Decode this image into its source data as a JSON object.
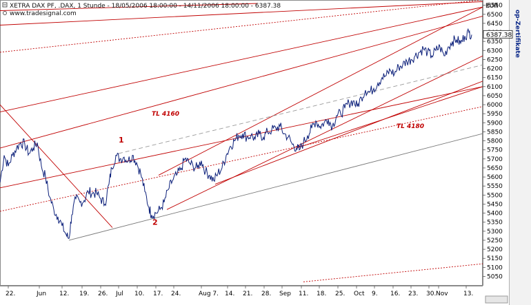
{
  "header": {
    "title": "XETRA DAX PF, .DAX, 1 Stunde - 18/05/2006 18:00:00 - 14/11/2006 18:00:00 - 6387.38",
    "source": "www.tradesignal.com",
    "currency": "EUR",
    "side_label": "op-Zertifikate"
  },
  "chart_data": {
    "type": "line",
    "title": "XETRA DAX PF, .DAX, 1 Stunde - 18/05/2006 18:00:00 - 14/11/2006 18:00:00 - 6387.38",
    "ylabel": "EUR",
    "ylim": [
      5010,
      6560
    ],
    "xlim": [
      0,
      700
    ],
    "y_ticks": [
      5050,
      5100,
      5150,
      5200,
      5250,
      5300,
      5350,
      5400,
      5450,
      5500,
      5550,
      5600,
      5650,
      5700,
      5750,
      5800,
      5850,
      5900,
      5950,
      6000,
      6050,
      6100,
      6150,
      6200,
      6250,
      6300,
      6350,
      6400,
      6450,
      6500,
      6550
    ],
    "x_ticks": [
      {
        "label": "22.",
        "x": 12
      },
      {
        "label": "Jun",
        "x": 57
      },
      {
        "label": "12.",
        "x": 90
      },
      {
        "label": "19.",
        "x": 119
      },
      {
        "label": "26.",
        "x": 146
      },
      {
        "label": "Jul",
        "x": 172
      },
      {
        "label": "10.",
        "x": 199
      },
      {
        "label": "17.",
        "x": 226
      },
      {
        "label": "24.",
        "x": 252
      },
      {
        "label": "Aug 7.",
        "x": 292
      },
      {
        "label": "14.",
        "x": 330
      },
      {
        "label": "21.",
        "x": 356
      },
      {
        "label": "28.",
        "x": 383
      },
      {
        "label": "Sep",
        "x": 409
      },
      {
        "label": "11.",
        "x": 437
      },
      {
        "label": "18.",
        "x": 463
      },
      {
        "label": "25.",
        "x": 490
      },
      {
        "label": "Oct",
        "x": 517
      },
      {
        "label": "9.",
        "x": 543
      },
      {
        "label": "16.",
        "x": 570
      },
      {
        "label": "23.",
        "x": 596
      },
      {
        "label": "30.",
        "x": 622
      },
      {
        "label": "Nov",
        "x": 636
      },
      {
        "label": "13.",
        "x": 676
      }
    ],
    "last_value": "6387.38",
    "grid": false,
    "series": [
      {
        "values": [
          [
            0,
            5570
          ],
          [
            6,
            5720
          ],
          [
            12,
            5660
          ],
          [
            18,
            5720
          ],
          [
            24,
            5760
          ],
          [
            30,
            5790
          ],
          [
            36,
            5780
          ],
          [
            42,
            5730
          ],
          [
            48,
            5760
          ],
          [
            54,
            5790
          ],
          [
            60,
            5660
          ],
          [
            66,
            5600
          ],
          [
            72,
            5490
          ],
          [
            78,
            5420
          ],
          [
            84,
            5380
          ],
          [
            90,
            5330
          ],
          [
            96,
            5280
          ],
          [
            100,
            5260
          ],
          [
            104,
            5390
          ],
          [
            110,
            5480
          ],
          [
            116,
            5460
          ],
          [
            122,
            5470
          ],
          [
            128,
            5520
          ],
          [
            134,
            5510
          ],
          [
            140,
            5510
          ],
          [
            146,
            5480
          ],
          [
            152,
            5450
          ],
          [
            158,
            5560
          ],
          [
            162,
            5650
          ],
          [
            168,
            5720
          ],
          [
            174,
            5700
          ],
          [
            180,
            5710
          ],
          [
            186,
            5690
          ],
          [
            192,
            5720
          ],
          [
            198,
            5680
          ],
          [
            204,
            5620
          ],
          [
            210,
            5520
          ],
          [
            216,
            5430
          ],
          [
            220,
            5390
          ],
          [
            226,
            5400
          ],
          [
            232,
            5420
          ],
          [
            238,
            5460
          ],
          [
            244,
            5530
          ],
          [
            250,
            5580
          ],
          [
            256,
            5610
          ],
          [
            262,
            5640
          ],
          [
            268,
            5700
          ],
          [
            274,
            5680
          ],
          [
            280,
            5660
          ],
          [
            286,
            5650
          ],
          [
            292,
            5690
          ],
          [
            298,
            5630
          ],
          [
            304,
            5610
          ],
          [
            310,
            5580
          ],
          [
            316,
            5620
          ],
          [
            322,
            5650
          ],
          [
            328,
            5720
          ],
          [
            334,
            5770
          ],
          [
            340,
            5800
          ],
          [
            346,
            5830
          ],
          [
            352,
            5840
          ],
          [
            358,
            5820
          ],
          [
            364,
            5830
          ],
          [
            370,
            5810
          ],
          [
            376,
            5840
          ],
          [
            382,
            5820
          ],
          [
            388,
            5850
          ],
          [
            394,
            5860
          ],
          [
            400,
            5870
          ],
          [
            406,
            5880
          ],
          [
            412,
            5840
          ],
          [
            418,
            5820
          ],
          [
            424,
            5780
          ],
          [
            430,
            5760
          ],
          [
            434,
            5750
          ],
          [
            440,
            5790
          ],
          [
            446,
            5830
          ],
          [
            452,
            5870
          ],
          [
            458,
            5910
          ],
          [
            464,
            5880
          ],
          [
            470,
            5900
          ],
          [
            476,
            5920
          ],
          [
            482,
            5880
          ],
          [
            488,
            5940
          ],
          [
            494,
            5950
          ],
          [
            500,
            5980
          ],
          [
            506,
            6010
          ],
          [
            512,
            6020
          ],
          [
            518,
            5990
          ],
          [
            524,
            6040
          ],
          [
            530,
            6080
          ],
          [
            536,
            6070
          ],
          [
            542,
            6090
          ],
          [
            548,
            6120
          ],
          [
            554,
            6150
          ],
          [
            560,
            6160
          ],
          [
            566,
            6190
          ],
          [
            572,
            6170
          ],
          [
            578,
            6210
          ],
          [
            584,
            6220
          ],
          [
            590,
            6240
          ],
          [
            596,
            6250
          ],
          [
            602,
            6270
          ],
          [
            608,
            6290
          ],
          [
            614,
            6310
          ],
          [
            620,
            6290
          ],
          [
            626,
            6270
          ],
          [
            632,
            6300
          ],
          [
            638,
            6320
          ],
          [
            644,
            6270
          ],
          [
            650,
            6320
          ],
          [
            656,
            6350
          ],
          [
            662,
            6360
          ],
          [
            668,
            6340
          ],
          [
            674,
            6380
          ],
          [
            680,
            6400
          ],
          [
            684,
            6387
          ]
        ]
      }
    ],
    "annotations": [
      {
        "text": "TL 4160",
        "x": 220,
        "y": 5940
      },
      {
        "text": "TL 4180",
        "x": 575,
        "y": 5870
      },
      {
        "text": "1",
        "x": 172,
        "y": 5790
      },
      {
        "text": "2",
        "x": 221,
        "y": 5335
      }
    ],
    "trendlines": [
      {
        "style": "solid-red",
        "p1": [
          0,
          6520
        ],
        "p2": [
          374,
          6560
        ]
      },
      {
        "style": "dotted-red",
        "p1": [
          0,
          6290
        ],
        "p2": [
          700,
          6580
        ]
      },
      {
        "style": "solid-red",
        "p1": [
          0,
          6440
        ],
        "p2": [
          700,
          6570
        ]
      },
      {
        "style": "solid-red",
        "p1": [
          0,
          5960
        ],
        "p2": [
          700,
          6540
        ]
      },
      {
        "style": "solid-red",
        "p1": [
          0,
          5760
        ],
        "p2": [
          700,
          6490
        ]
      },
      {
        "style": "solid-red",
        "p1": [
          0,
          5540
        ],
        "p2": [
          700,
          6100
        ]
      },
      {
        "style": "dotted-red",
        "p1": [
          0,
          5410
        ],
        "p2": [
          700,
          5990
        ]
      },
      {
        "style": "solid-red",
        "p1": [
          0,
          6000
        ],
        "p2": [
          163,
          5320
        ]
      },
      {
        "style": "solid-red",
        "p1": [
          230,
          5610
        ],
        "p2": [
          700,
          6540
        ]
      },
      {
        "style": "solid-red",
        "p1": [
          242,
          5420
        ],
        "p2": [
          700,
          6270
        ]
      },
      {
        "style": "solid-red",
        "p1": [
          312,
          5560
        ],
        "p2": [
          700,
          6130
        ]
      },
      {
        "style": "solid-red",
        "p1": [
          430,
          5760
        ],
        "p2": [
          700,
          6100
        ]
      },
      {
        "style": "solid-gray",
        "p1": [
          100,
          5250
        ],
        "p2": [
          700,
          5840
        ]
      },
      {
        "style": "dashed-gray",
        "p1": [
          172,
          5730
        ],
        "p2": [
          700,
          6220
        ]
      },
      {
        "style": "dotted-red",
        "p1": [
          440,
          5020
        ],
        "p2": [
          700,
          5120
        ]
      }
    ]
  }
}
